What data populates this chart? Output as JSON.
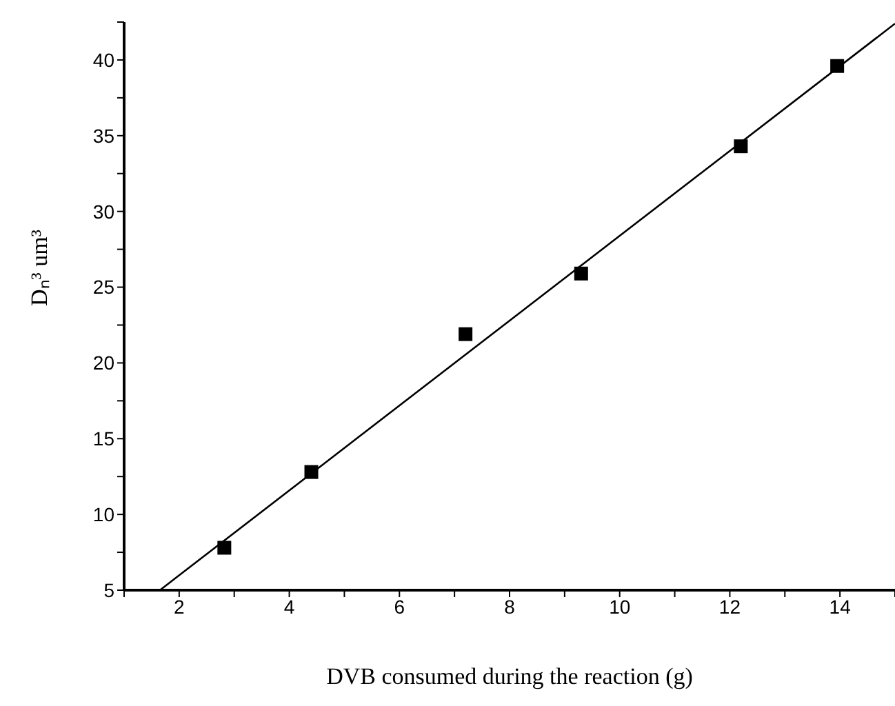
{
  "chart_data": {
    "type": "scatter",
    "xlabel": "DVB consumed during the reaction (g)",
    "ylabel": "Dₙ³ um³",
    "xlim": [
      1,
      15
    ],
    "ylim": [
      5,
      42.5
    ],
    "xticks": [
      {
        "value": 1,
        "label": null
      },
      2,
      {
        "value": 3,
        "label": null
      },
      4,
      {
        "value": 5,
        "label": null
      },
      6,
      {
        "value": 7,
        "label": null
      },
      8,
      {
        "value": 9,
        "label": null
      },
      10,
      {
        "value": 11,
        "label": null
      },
      12,
      {
        "value": 13,
        "label": null
      },
      14,
      {
        "value": 15,
        "label": null
      }
    ],
    "yticks": [
      5,
      {
        "value": 7.5,
        "label": null
      },
      10,
      {
        "value": 12.5,
        "label": null
      },
      15,
      {
        "value": 17.5,
        "label": null
      },
      20,
      {
        "value": 22.5,
        "label": null
      },
      25,
      {
        "value": 27.5,
        "label": null
      },
      30,
      {
        "value": 32.5,
        "label": null
      },
      35,
      {
        "value": 37.5,
        "label": null
      },
      40,
      {
        "value": 42.5,
        "label": null
      }
    ],
    "grid": false,
    "legend": false,
    "series": [
      {
        "type": "scatter",
        "color": "#000000",
        "marker": "square",
        "x": [
          2.82,
          4.4,
          7.2,
          9.3,
          12.2,
          13.95
        ],
        "values": [
          7.8,
          12.8,
          21.9,
          25.9,
          34.3,
          39.6
        ]
      },
      {
        "type": "line",
        "color": "#000000",
        "marker": "none",
        "line_style": "solid",
        "x": [
          1.65,
          15
        ],
        "values": [
          5,
          42.4
        ]
      }
    ]
  }
}
